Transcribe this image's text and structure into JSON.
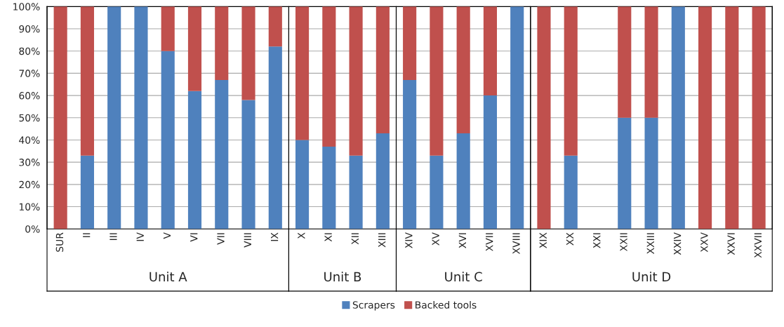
{
  "chart_data": {
    "type": "bar",
    "stacked": true,
    "categories": [
      "SUR",
      "II",
      "III",
      "IV",
      "V",
      "VI",
      "VII",
      "VIII",
      "IX",
      "X",
      "XI",
      "XII",
      "XIII",
      "XIV",
      "XV",
      "XVI",
      "XVII",
      "XVIII",
      "XIX",
      "XX",
      "XXI",
      "XXII",
      "XXIII",
      "XXIV",
      "XXV",
      "XXVI",
      "XXVII"
    ],
    "series": [
      {
        "name": "Scrapers",
        "color": "#4f81bd",
        "values": [
          0,
          33,
          100,
          100,
          80,
          62,
          67,
          58,
          82,
          40,
          37,
          33,
          43,
          67,
          33,
          43,
          60,
          100,
          0,
          33,
          null,
          50,
          50,
          100,
          0,
          0,
          0
        ]
      },
      {
        "name": "Backed tools",
        "color": "#c0504d",
        "values": [
          100,
          67,
          0,
          0,
          20,
          38,
          33,
          42,
          18,
          60,
          63,
          67,
          57,
          33,
          67,
          57,
          40,
          0,
          100,
          67,
          null,
          50,
          50,
          0,
          100,
          100,
          100
        ]
      }
    ],
    "ylim": [
      0,
      100
    ],
    "yticks": [
      {
        "value": 0,
        "label": "0%"
      },
      {
        "value": 10,
        "label": "10%"
      },
      {
        "value": 20,
        "label": "20%"
      },
      {
        "value": 30,
        "label": "30%"
      },
      {
        "value": 40,
        "label": "40%"
      },
      {
        "value": 50,
        "label": "50%"
      },
      {
        "value": 60,
        "label": "60%"
      },
      {
        "value": 70,
        "label": "70%"
      },
      {
        "value": 80,
        "label": "80%"
      },
      {
        "value": 90,
        "label": "90%"
      },
      {
        "value": 100,
        "label": "100%"
      }
    ],
    "annotations": [
      "Unit A",
      "Unit B",
      "Unit C",
      "Unit D"
    ],
    "grid": "y",
    "legend": "bottom"
  }
}
